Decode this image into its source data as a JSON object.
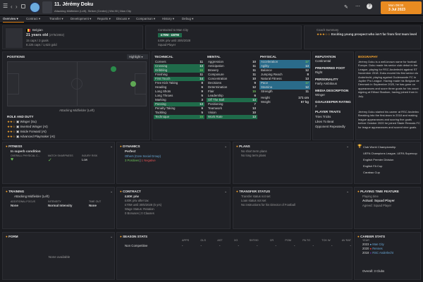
{
  "header": {
    "number": "11.",
    "name": "Jérémy Doku",
    "positions": "Attacking Midfielder (Left), Striker (Centre) | Wd-90 | Man City",
    "date_day": "Mon 09:00",
    "date": "3 Jul 2023",
    "continue": "Continue"
  },
  "tabs": [
    "Overview",
    "Contract",
    "Transfer",
    "Development",
    "Reports",
    "Discuss",
    "Comparison",
    "History",
    "Debug"
  ],
  "profile": {
    "nation": "Belgian",
    "age": "21 years old",
    "dob": "(27/5/2002)",
    "caps": "15 caps / 3 goals",
    "rating": "8.225 caps / 1,623 gold",
    "contract_label": "Contracted to Man City",
    "value_range": "£70M - £87M",
    "wage": "£40K p/w until 30/6/2028",
    "squad_status": "Squad Player",
    "coach_label": "Coach Summary",
    "coach_text": "Exciting young prospect who isn't far from first team level"
  },
  "positions": {
    "label": "POSITIONS",
    "highlight": "Highlight",
    "role_caption": "Attacking Midfielder (Left)"
  },
  "roles": {
    "title": "ROLE AND DUTY",
    "items": [
      "Winger (Su)",
      "Inverted Winger (At)",
      "Inside Forward (At)",
      "Advanced Playmaker (At)"
    ]
  },
  "technical": {
    "title": "TECHNICAL",
    "rows": [
      [
        "Corners",
        "11"
      ],
      [
        "Crossing",
        "13"
      ],
      [
        "Dribbling",
        "16"
      ],
      [
        "Finishing",
        "11"
      ],
      [
        "First Touch",
        "14"
      ],
      [
        "Free Kick Taking",
        "8"
      ],
      [
        "Heading",
        "6"
      ],
      [
        "Long Shots",
        "9"
      ],
      [
        "Long Throws",
        "5"
      ],
      [
        "Marking",
        "3"
      ],
      [
        "Passing",
        "13"
      ],
      [
        "Penalty Taking",
        "9"
      ],
      [
        "Tackling",
        "5"
      ],
      [
        "Technique",
        "15"
      ]
    ]
  },
  "mental": {
    "title": "MENTAL",
    "rows": [
      [
        "Aggression",
        "10"
      ],
      [
        "Anticipation",
        "11"
      ],
      [
        "Bravery",
        "11"
      ],
      [
        "Composure",
        "11"
      ],
      [
        "Concentration",
        "10"
      ],
      [
        "Decisions",
        "9"
      ],
      [
        "Determination",
        "12"
      ],
      [
        "Flair",
        "15"
      ],
      [
        "Leadership",
        "6"
      ],
      [
        "Off The Ball",
        "13"
      ],
      [
        "Positioning",
        "7"
      ],
      [
        "Teamwork",
        "13"
      ],
      [
        "Vision",
        "10"
      ],
      [
        "Work Rate",
        "13"
      ]
    ]
  },
  "physical": {
    "title": "PHYSICAL",
    "rows": [
      [
        "Acceleration",
        "17"
      ],
      [
        "Agility",
        "13"
      ],
      [
        "Balance",
        "12"
      ],
      [
        "Jumping Reach",
        "8"
      ],
      [
        "Natural Fitness",
        "13"
      ],
      [
        "Pace",
        "17"
      ],
      [
        "Stamina",
        "12"
      ],
      [
        "Strength",
        "11"
      ]
    ],
    "height_label": "Height",
    "height": "171 cm",
    "weight_label": "Weight",
    "weight": "67 kg"
  },
  "side": {
    "reputation_label": "REPUTATION",
    "reputation": "Continental",
    "foot_label": "PREFERRED FOOT",
    "foot": "Right",
    "personality_label": "PERSONALITY",
    "personality": "Fairly Ambitious",
    "media_label": "MEDIA DESCRIPTION",
    "media": "Winger",
    "gk_label": "GOALKEEPER RATING",
    "gk": "2",
    "traits_label": "PLAYER TRAITS",
    "traits": [
      "Tries Tricks",
      "Likes To Beat",
      "Opponent Repeatedly"
    ]
  },
  "bio": {
    "title": "BIOGRAPHY",
    "p1": "Jérémy Doku is a well-known name for football Europe. Doku made his senior club debut in the League, playing for RSC Anderlecht against ST November 2018. Doku moved his first senior clu Anderlecht, playing against Oudenaarde FC in Jupiler Pro League. Having made his Belgium de Denmark in September 2020, he has gone on appearances and score three goals for his count signing at Etihad Stadium, having joined from in July.",
    "p2": "Jérémy Doku started his career at RSC Anderlec Breaking into the first-team in 2018 and making league appearances and scoring five goals before October 2020 he joined Stade Rennais FC for league appearances and scored nine goals."
  },
  "fitness": {
    "title": "FITNESS",
    "status": "In superb condition",
    "c1": "OVERALL PHYSICAL C...",
    "c2": "MATCH SHARPNESS",
    "c3": "INJURY RISK",
    "risk": "Low"
  },
  "dynamics": {
    "title": "DYNAMICS",
    "status": "Perfect",
    "group": "Others (Core Social Group)",
    "pos": "3 Positives",
    "neg": "1 Negative"
  },
  "plans": {
    "title": "PLANS",
    "l1": "No short term plans",
    "l2": "No long term plans"
  },
  "trophies": {
    "items": [
      "Club World Championship",
      "UEFA Champions League, UEFA Supercup",
      "English Premier Division",
      "English FA Cup",
      "Carabao Cup"
    ]
  },
  "training": {
    "title": "TRAINING",
    "role": "Attacking Midfielder (Left)",
    "c1": "ADDITIONAL FOCUS",
    "c2": "INTENSITY",
    "c3": "TIME OUT",
    "focus": "None",
    "intensity": "Normal Intensity",
    "timeout": "None"
  },
  "contract": {
    "title": "CONTRACT",
    "wage": "£40K p/w",
    "l1": "£40K p/w after tax",
    "l2": "£70M until 30/6/2028 (5 yrs)",
    "l3": "Wage Status: Rotation",
    "l4": "0 Bonuses | 0 Clauses"
  },
  "transfer": {
    "title": "TRANSFER STATUS",
    "l1": "Transfer status not set",
    "l2": "Loan status not set",
    "l3": "No instructions for his Director of Football"
  },
  "playing": {
    "title": "PLAYING TIME FEATURE",
    "line": "Playing time",
    "status": "Actual: Squad Player",
    "sub": "Agreed: Squad Player"
  },
  "form": {
    "title": "FORM",
    "note": "None available"
  },
  "season": {
    "title": "SEASON STATS",
    "comp": "Non Competitive",
    "cols": [
      "APPS",
      "GLS",
      "AST",
      "XG",
      "SHT/90",
      "CR",
      "POM",
      "PA TO",
      "TCK W",
      "AV RAT"
    ],
    "vals": [
      "-",
      "-",
      "-",
      "-",
      "-",
      "-",
      "-",
      "-",
      "-",
      "-"
    ]
  },
  "career": {
    "title": "CAREER STATS",
    "col1": "YEAR",
    "col2": "",
    "rows": [
      [
        "2023",
        "Man City"
      ],
      [
        "2020",
        "Rennes"
      ],
      [
        "2018",
        "RSC Anderlecht"
      ]
    ],
    "overall": "Overall: 3 Clubs"
  },
  "colors": {
    "accent": "#f2a22f",
    "green": "#1f6b4a",
    "blue": "#2a6b8a",
    "topbar": "#2b2c31"
  }
}
